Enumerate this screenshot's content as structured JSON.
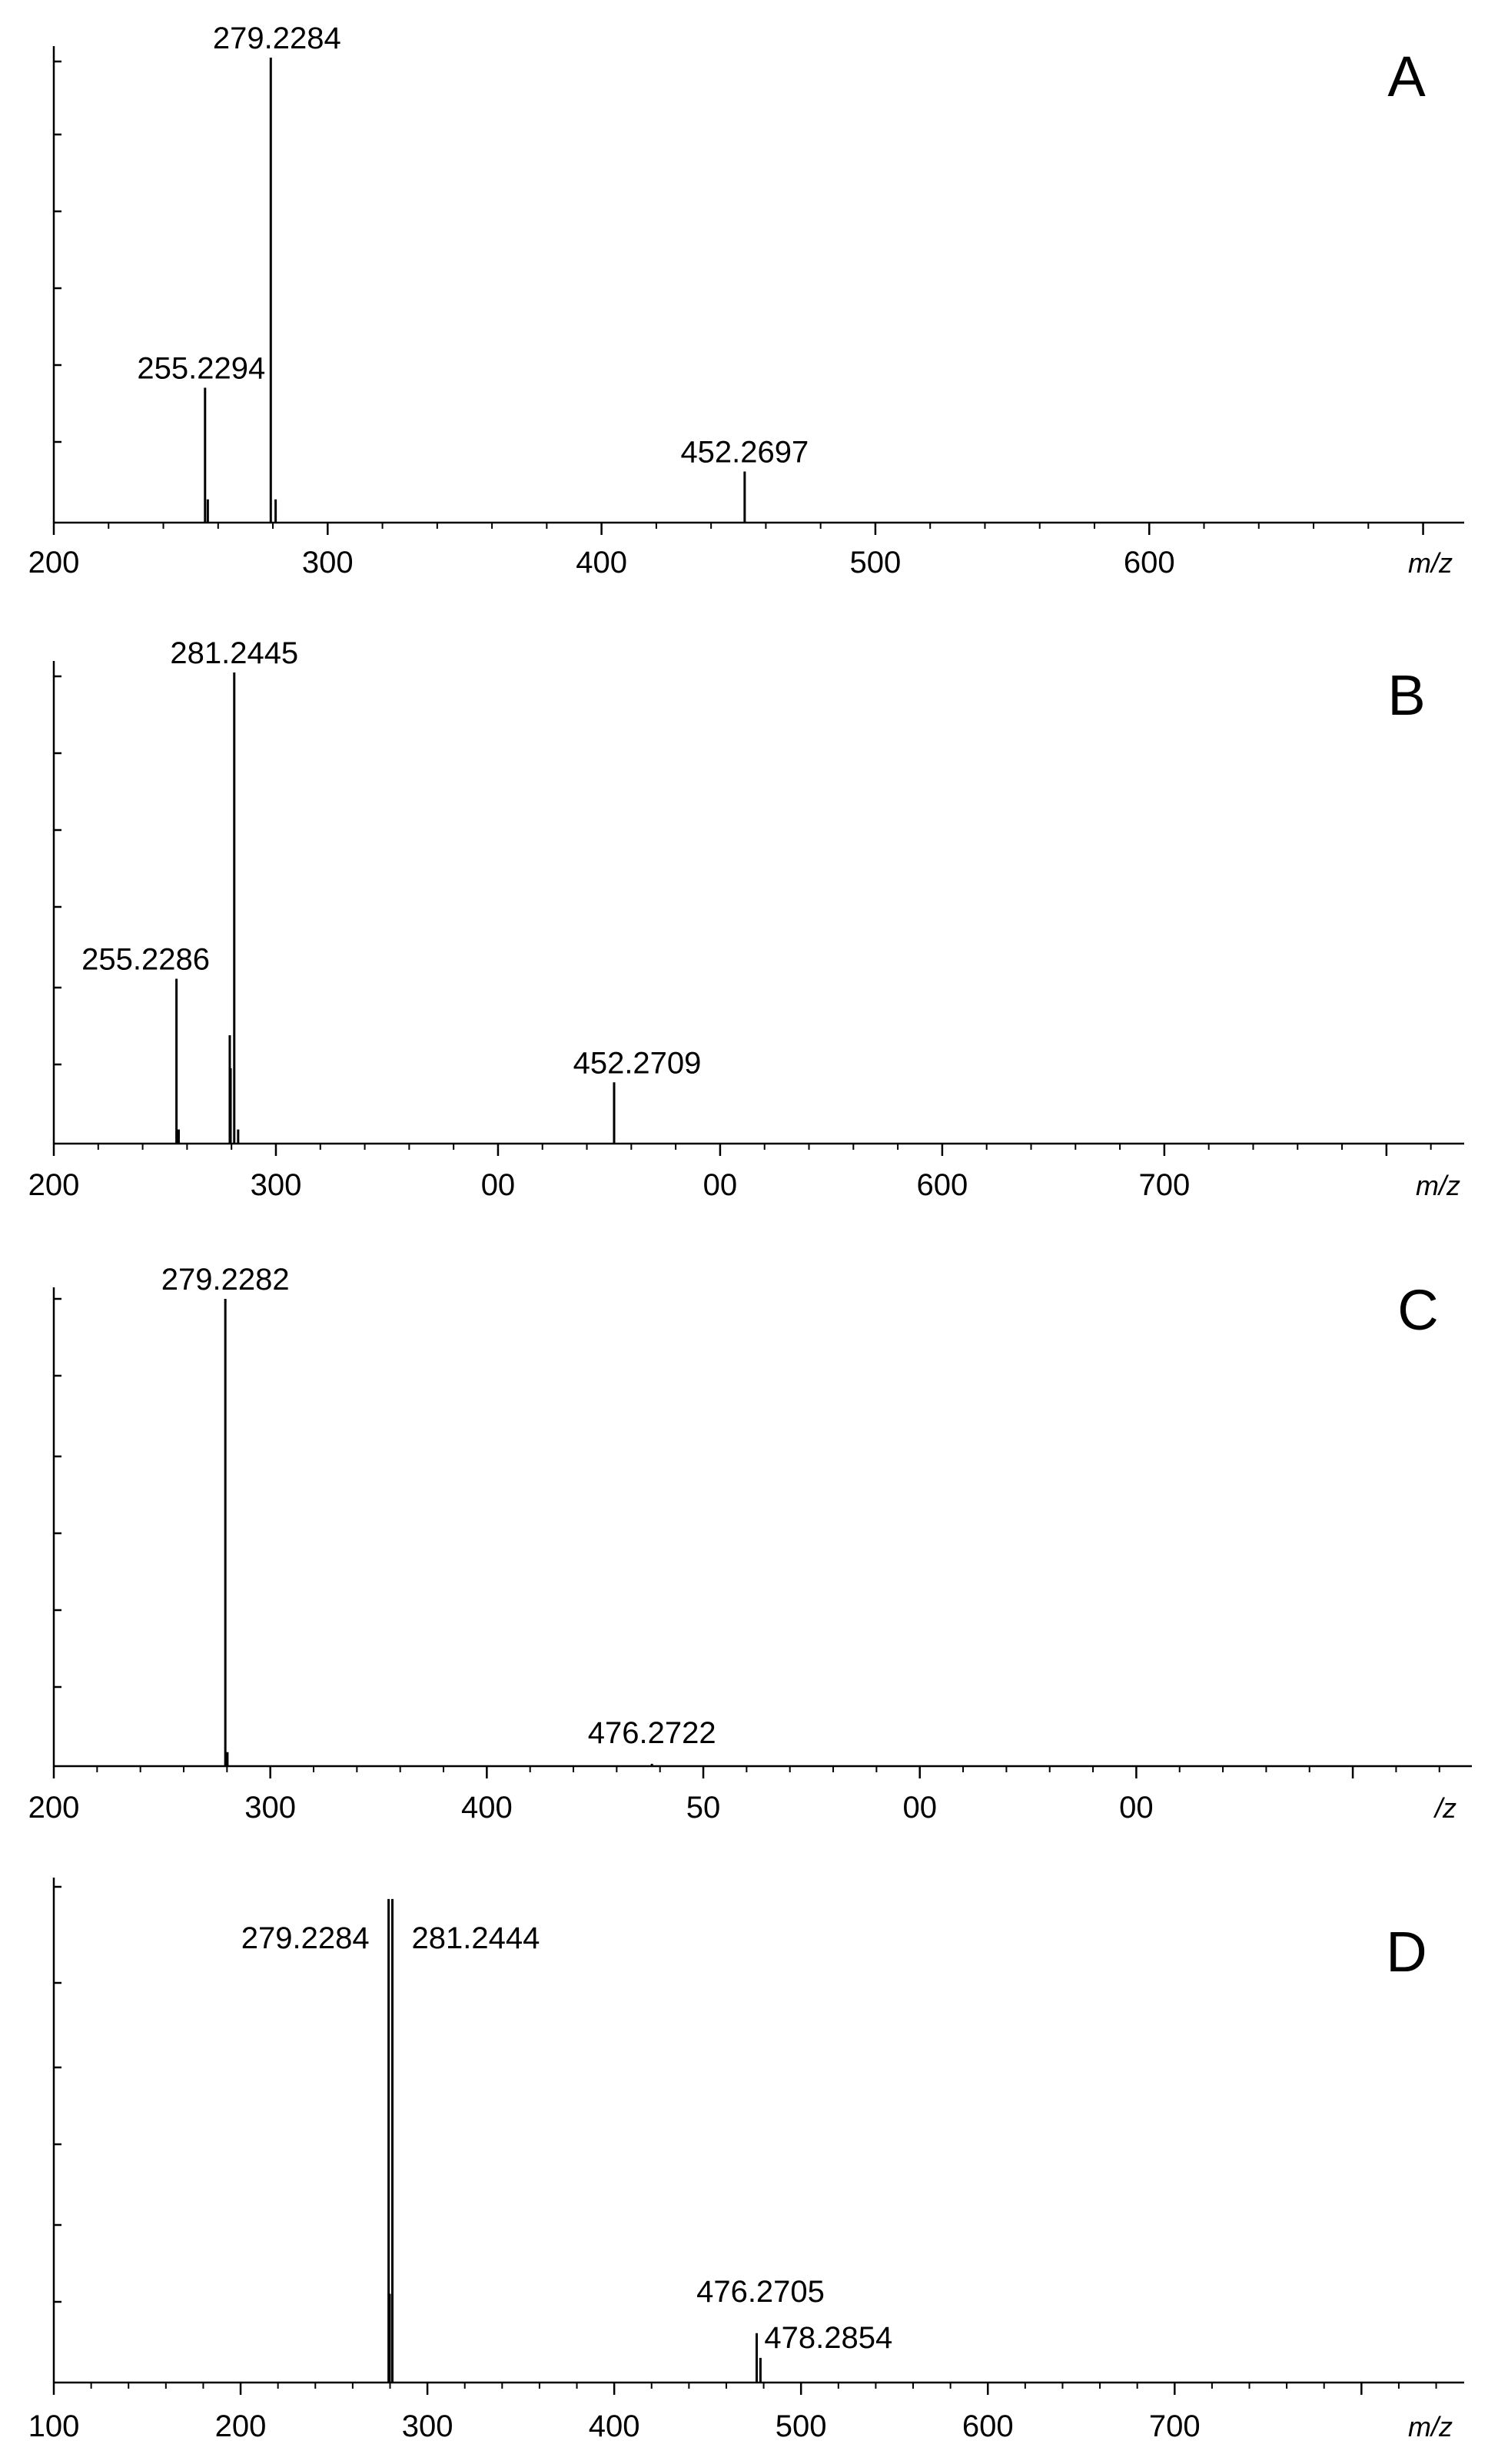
{
  "chart_data": [
    {
      "type": "bar",
      "panel_label": "A",
      "xlabel": "m/z",
      "xlim": [
        200,
        715
      ],
      "x_tick_labels": [
        "200",
        "300",
        "400",
        "500",
        "600"
      ],
      "peaks": [
        {
          "mz": 255.2294,
          "rel": 0.29,
          "label": "255.2294"
        },
        {
          "mz": 256.23,
          "rel": 0.05,
          "label": ""
        },
        {
          "mz": 279.2284,
          "rel": 1.0,
          "label": "279.2284"
        },
        {
          "mz": 281.0,
          "rel": 0.05,
          "label": ""
        },
        {
          "mz": 452.2697,
          "rel": 0.11,
          "label": "452.2697"
        }
      ]
    },
    {
      "type": "bar",
      "panel_label": "B",
      "xlabel": "m/z",
      "xlim": [
        200,
        835
      ],
      "x_tick_labels": [
        "200",
        "300",
        "00",
        "00",
        "600",
        "700"
      ],
      "peaks": [
        {
          "mz": 255.2286,
          "rel": 0.35,
          "label": "255.2286"
        },
        {
          "mz": 256.23,
          "rel": 0.03,
          "label": ""
        },
        {
          "mz": 279.23,
          "rel": 0.23,
          "label": ""
        },
        {
          "mz": 279.6,
          "rel": 0.16,
          "label": ""
        },
        {
          "mz": 281.2445,
          "rel": 1.0,
          "label": "281.2445"
        },
        {
          "mz": 283.0,
          "rel": 0.03,
          "label": ""
        },
        {
          "mz": 452.2709,
          "rel": 0.13,
          "label": "452.2709"
        }
      ]
    },
    {
      "type": "bar",
      "panel_label": "C",
      "xlabel": "/z",
      "xlim": [
        200,
        855
      ],
      "x_tick_labels": [
        "200",
        "300",
        "400",
        "50",
        "00",
        "00"
      ],
      "peaks": [
        {
          "mz": 279.2282,
          "rel": 1.0,
          "label": "279.2282"
        },
        {
          "mz": 280.2,
          "rel": 0.03,
          "label": ""
        },
        {
          "mz": 476.2722,
          "rel": 0.005,
          "label": "476.2722"
        }
      ]
    },
    {
      "type": "bar",
      "panel_label": "D",
      "xlabel": "m/z",
      "xlim": [
        100,
        855
      ],
      "x_tick_labels": [
        "100",
        "200",
        "300",
        "400",
        "500",
        "600",
        "700"
      ],
      "peaks": [
        {
          "mz": 279.2284,
          "rel": 0.98,
          "label": "279.2284"
        },
        {
          "mz": 279.8,
          "rel": 0.18,
          "label": ""
        },
        {
          "mz": 281.2444,
          "rel": 0.98,
          "label": "281.2444"
        },
        {
          "mz": 476.2705,
          "rel": 0.1,
          "label": "476.2705"
        },
        {
          "mz": 478.2854,
          "rel": 0.05,
          "label": "478.2854"
        }
      ]
    }
  ]
}
